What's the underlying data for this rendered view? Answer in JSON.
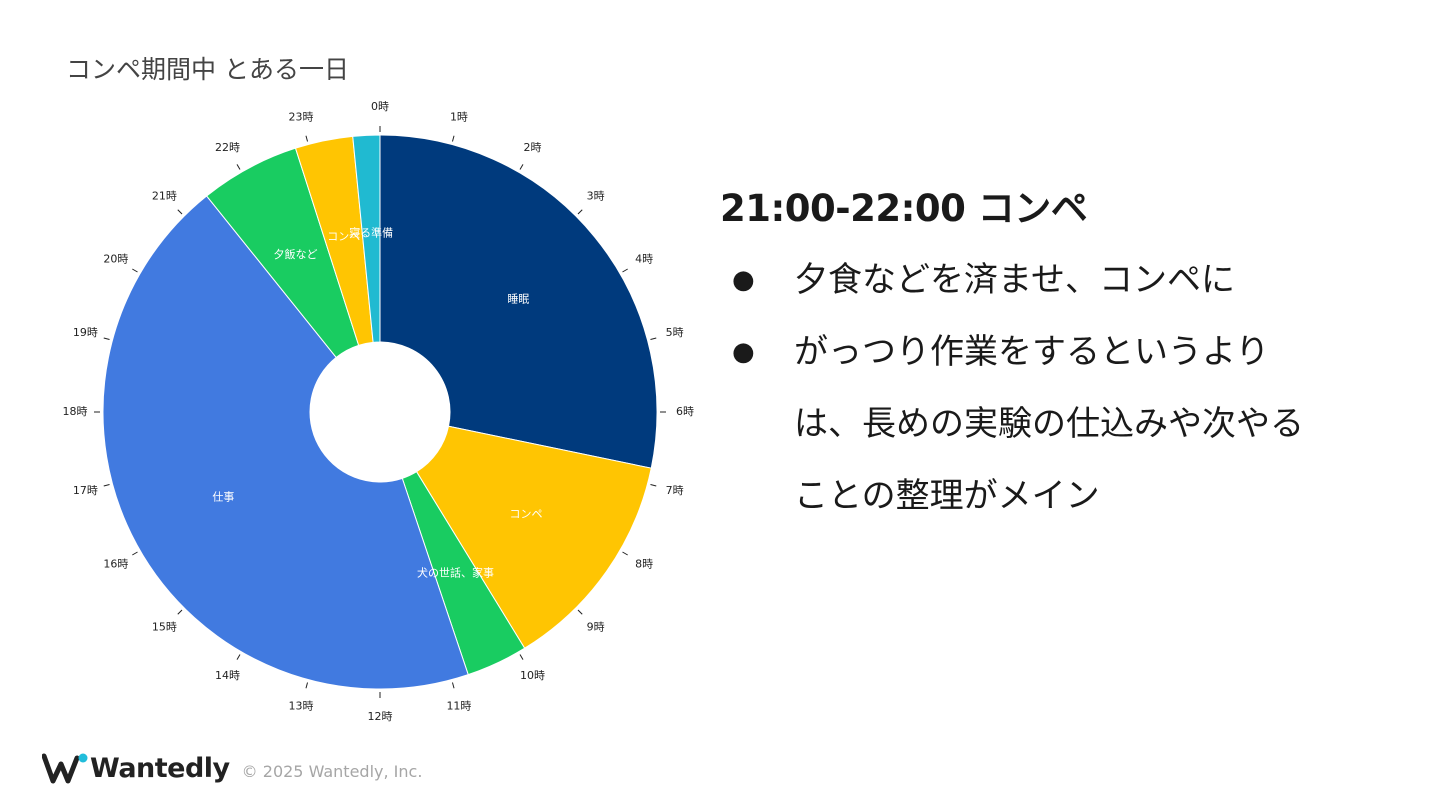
{
  "slide": {
    "title": "コンペ期間中 とある一日",
    "heading": "21:00-22:00 コンペ",
    "bullets": [
      "夕食などを済ませ、コンペに",
      "がっつり作業をするというよりは、長めの実験の仕込みや次やることの整理がメイン"
    ],
    "bullet_marker": "●"
  },
  "footer": {
    "logo_text": "Wantedly",
    "copyright": "© 2025 Wantedly, Inc."
  },
  "chart_data": {
    "type": "pie",
    "donut": true,
    "start_hour": 0,
    "hour_ticks": [
      "0時",
      "1時",
      "2時",
      "3時",
      "4時",
      "5時",
      "6時",
      "7時",
      "8時",
      "9時",
      "10時",
      "11時",
      "12時",
      "13時",
      "14時",
      "15時",
      "16時",
      "17時",
      "18時",
      "19時",
      "20時",
      "21時",
      "22時",
      "23時"
    ],
    "slices": [
      {
        "label": "睡眠",
        "hours": 6.3,
        "color": "#003a7d"
      },
      {
        "label": "コンペ",
        "hours": 2.9,
        "color": "#ffc502"
      },
      {
        "label": "犬の世話、家事",
        "hours": 0.8,
        "color": "#19cc61"
      },
      {
        "label": "仕事",
        "hours": 9.9,
        "color": "#417ae0"
      },
      {
        "label": "夕飯など",
        "hours": 1.3,
        "color": "#19cc61"
      },
      {
        "label": "コンペ",
        "hours": 0.75,
        "color": "#ffc502"
      },
      {
        "label": "寝る準備",
        "hours": 0.35,
        "color": "#20bad1"
      }
    ]
  }
}
